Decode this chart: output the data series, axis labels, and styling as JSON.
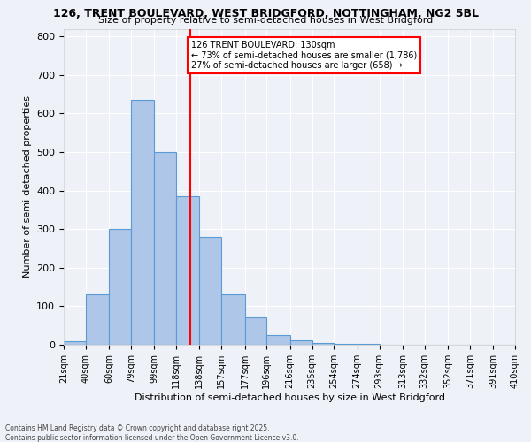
{
  "title_line1": "126, TRENT BOULEVARD, WEST BRIDGFORD, NOTTINGHAM, NG2 5BL",
  "title_line2": "Size of property relative to semi-detached houses in West Bridgford",
  "xlabel": "Distribution of semi-detached houses by size in West Bridgford",
  "ylabel": "Number of semi-detached properties",
  "footnote1": "Contains HM Land Registry data © Crown copyright and database right 2025.",
  "footnote2": "Contains public sector information licensed under the Open Government Licence v3.0.",
  "bin_edges": [
    21,
    40,
    60,
    79,
    99,
    118,
    138,
    157,
    177,
    196,
    216,
    235,
    254,
    274,
    293,
    313,
    332,
    352,
    371,
    391,
    410
  ],
  "bin_labels": [
    "21sqm",
    "40sqm",
    "60sqm",
    "79sqm",
    "99sqm",
    "118sqm",
    "138sqm",
    "157sqm",
    "177sqm",
    "196sqm",
    "216sqm",
    "235sqm",
    "254sqm",
    "274sqm",
    "293sqm",
    "313sqm",
    "332sqm",
    "352sqm",
    "371sqm",
    "391sqm",
    "410sqm"
  ],
  "bar_heights": [
    10,
    130,
    300,
    635,
    500,
    385,
    280,
    130,
    70,
    25,
    12,
    5,
    3,
    2,
    1,
    0,
    0,
    0,
    0,
    0
  ],
  "bar_color": "#aec6e8",
  "bar_edge_color": "#5b9bd5",
  "vline_x": 130,
  "vline_color": "red",
  "annotation_title": "126 TRENT BOULEVARD: 130sqm",
  "annotation_line1": "← 73% of semi-detached houses are smaller (1,786)",
  "annotation_line2": "27% of semi-detached houses are larger (658) →",
  "annotation_box_color": "red",
  "ylim": [
    0,
    820
  ],
  "yticks": [
    0,
    100,
    200,
    300,
    400,
    500,
    600,
    700,
    800
  ],
  "background_color": "#eef2f8",
  "grid_color": "#ffffff"
}
